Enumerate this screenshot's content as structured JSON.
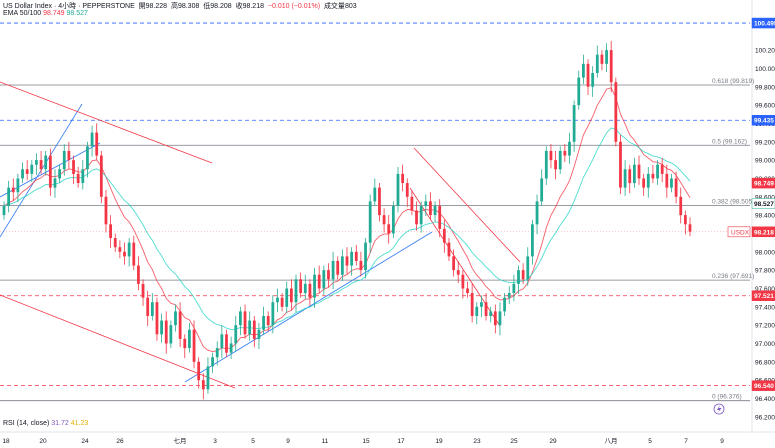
{
  "header": {
    "symbol": "US Dollar Index · 4小時 · PEPPERSTONE",
    "open_label": "開",
    "open": "98.228",
    "high_label": "高",
    "high": "98.308",
    "low_label": "低",
    "low": "98.208",
    "close_label": "收",
    "close": "98.218",
    "change": "−0.010 (−0.01%)",
    "volume_label": "成交量",
    "volume": "803",
    "ema_label": "EMA 50/100",
    "ema50": "98.749",
    "ema100": "98.527"
  },
  "rsi": {
    "label": "RSI (14, close)",
    "v1": "31.72",
    "v2": "41.23"
  },
  "colors": {
    "up": "#22ab94",
    "down": "#f23645",
    "ema50": "#f23645",
    "ema100": "#22d3c5",
    "fib": "#787b86",
    "trend": "#3179f5",
    "channel_red": "#f23645",
    "label_blue": "#2962ff",
    "label_red": "#f23645",
    "label_dark": "#131722"
  },
  "chart_data": {
    "type": "candlestick",
    "y_axis": {
      "range": [
        96.1,
        100.55
      ],
      "ticks": [
        "100.200",
        "100.000",
        "99.800",
        "99.600",
        "99.400",
        "99.200",
        "99.000",
        "98.800",
        "98.600",
        "98.400",
        "98.200",
        "98.000",
        "97.800",
        "97.600",
        "97.400",
        "97.200",
        "97.000",
        "96.800",
        "96.600",
        "96.400",
        "96.200"
      ]
    },
    "x_axis": {
      "labels": [
        "18",
        "20",
        "24",
        "26",
        "七月",
        "3",
        "5",
        "9",
        "11",
        "15",
        "17",
        "19",
        "23",
        "25",
        "29",
        "八月",
        "5",
        "7",
        "9"
      ]
    },
    "price_labels": [
      {
        "value": "100.495",
        "style": "blue"
      },
      {
        "value": "99.435",
        "style": "blue"
      },
      {
        "value": "98.749",
        "style": "red"
      },
      {
        "value": "98.527",
        "style": "teal"
      },
      {
        "value": "98.218",
        "style": "current",
        "tag": "USDX"
      },
      {
        "value": "97.521",
        "style": "red"
      },
      {
        "value": "96.540",
        "style": "red"
      }
    ],
    "fib_levels": [
      {
        "label": "0.618 (99.819)",
        "value": 99.819
      },
      {
        "label": "0.5 (99.162)",
        "value": 99.162
      },
      {
        "label": "0.382 (98.505)",
        "value": 98.505
      },
      {
        "label": "0.236 (97.691)",
        "value": 97.691
      },
      {
        "label": "0 (96.376)",
        "value": 96.376
      }
    ],
    "closes": [
      98.5,
      98.7,
      98.65,
      98.8,
      98.9,
      98.85,
      98.95,
      99.0,
      98.9,
      99.05,
      98.7,
      98.8,
      98.9,
      99.1,
      99.0,
      98.85,
      98.75,
      98.9,
      99.15,
      99.3,
      99.05,
      98.6,
      98.3,
      98.15,
      98.05,
      98.0,
      97.95,
      98.1,
      97.85,
      97.65,
      97.5,
      97.3,
      97.45,
      97.1,
      97.25,
      97.0,
      97.2,
      97.35,
      97.05,
      96.95,
      97.15,
      96.8,
      96.6,
      96.5,
      96.75,
      96.85,
      96.95,
      97.1,
      96.9,
      97.0,
      97.2,
      97.35,
      97.1,
      97.25,
      97.05,
      97.15,
      97.3,
      97.2,
      97.45,
      97.5,
      97.4,
      97.6,
      97.45,
      97.7,
      97.55,
      97.65,
      97.5,
      97.75,
      97.6,
      97.8,
      97.7,
      97.9,
      97.75,
      97.95,
      97.85,
      98.0,
      97.9,
      97.8,
      98.1,
      98.55,
      98.7,
      98.4,
      98.3,
      98.2,
      98.5,
      98.85,
      98.75,
      98.6,
      98.45,
      98.3,
      98.5,
      98.55,
      98.4,
      98.5,
      98.25,
      98.1,
      97.95,
      97.8,
      97.75,
      97.6,
      97.55,
      97.3,
      97.4,
      97.45,
      97.3,
      97.35,
      97.2,
      97.35,
      97.5,
      97.55,
      97.65,
      97.8,
      97.7,
      97.95,
      98.3,
      98.55,
      98.8,
      99.1,
      99.0,
      98.9,
      99.1,
      99.05,
      99.2,
      99.6,
      99.9,
      100.05,
      99.8,
      99.95,
      100.15,
      100.05,
      100.2,
      99.85,
      99.2,
      98.7,
      98.9,
      98.75,
      98.95,
      98.8,
      98.7,
      98.85,
      98.8,
      98.95,
      98.85,
      98.7,
      98.8,
      98.6,
      98.4,
      98.3,
      98.22
    ]
  }
}
